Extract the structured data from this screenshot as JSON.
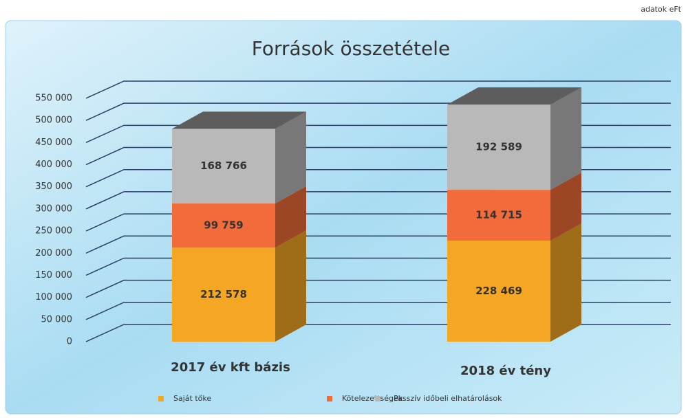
{
  "chart_data": {
    "type": "bar",
    "stacked": true,
    "title": "Források összetétele",
    "annotation": "adatok eFt",
    "categories": [
      "2017 év kft bázis",
      "2018 év tény"
    ],
    "series": [
      {
        "name": "Saját tőke",
        "color": "#f5a623",
        "values": [
          212578,
          228469
        ],
        "value_labels": [
          "212 578",
          "228 469"
        ]
      },
      {
        "name": "Kötelezettségek",
        "color": "#f26b3a",
        "values": [
          99759,
          114715
        ],
        "value_labels": [
          "99 759",
          "114 715"
        ]
      },
      {
        "name": "Passzív időbeli elhatárolások",
        "color": "#b9b9b9",
        "values": [
          168766,
          192589
        ],
        "value_labels": [
          "168 766",
          "192 589"
        ]
      }
    ],
    "ylim": [
      0,
      550000
    ],
    "yticks": [
      0,
      {
        "value": 50000,
        "label": "50 000"
      },
      {
        "value": 100000,
        "label": "100 000"
      },
      {
        "value": 150000,
        "label": "150 000"
      },
      {
        "value": 200000,
        "label": "200 000"
      },
      {
        "value": 250000,
        "label": "250 000"
      },
      {
        "value": 300000,
        "label": "300 000"
      },
      {
        "value": 350000,
        "label": "350 000"
      },
      {
        "value": 400000,
        "label": "400 000"
      },
      {
        "value": 450000,
        "label": "450 000"
      },
      {
        "value": 500000,
        "label": "500 000"
      },
      {
        "value": 550000,
        "label": "550 000"
      }
    ],
    "grid": true,
    "legend": "bottom"
  }
}
